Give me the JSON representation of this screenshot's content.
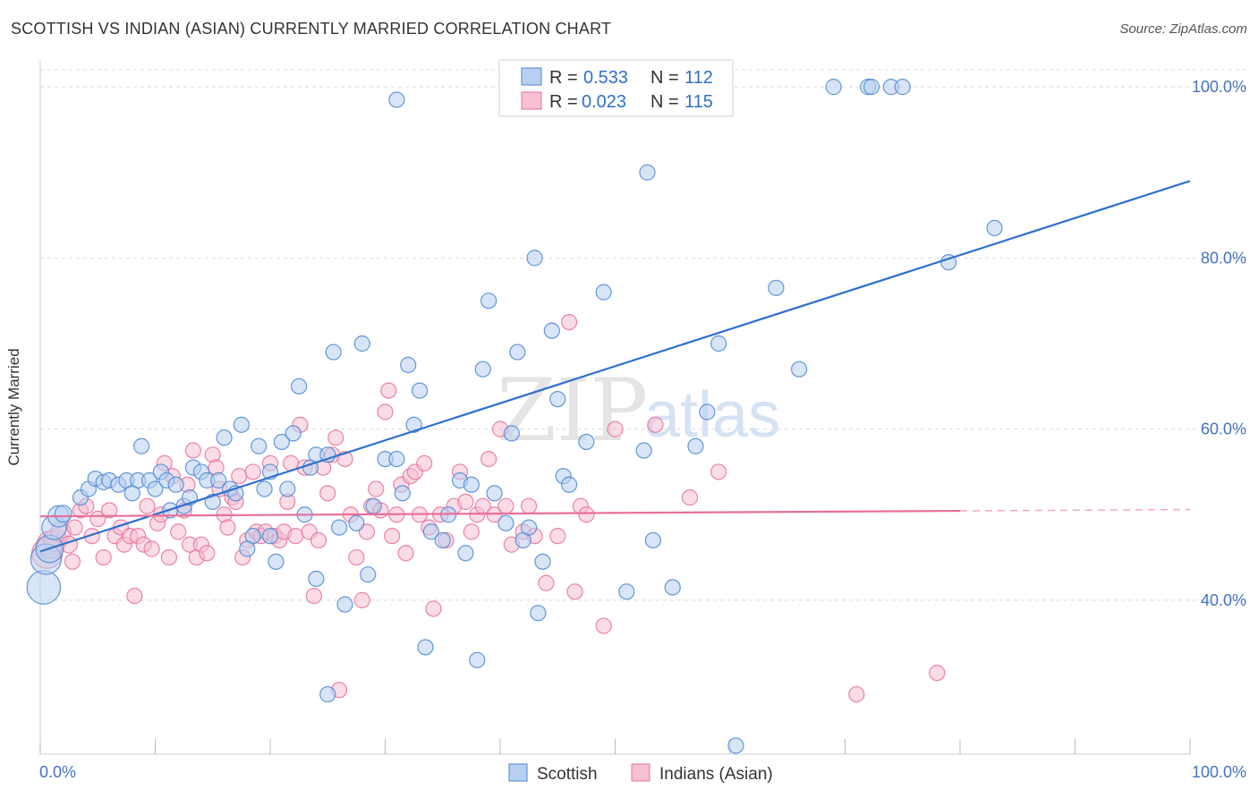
{
  "title": "SCOTTISH VS INDIAN (ASIAN) CURRENTLY MARRIED CORRELATION CHART",
  "source": "Source: ZipAtlas.com",
  "watermark": {
    "zip": "ZIP",
    "atlas": "atlas"
  },
  "colors": {
    "scottish": "#4a86d0",
    "scottish_fill": "#b8d0f0",
    "indian": "#e8709a",
    "indian_fill": "#f6c0d2",
    "value_text": "#2f6fd0",
    "grid": "#d9d9d9"
  },
  "legend_top": {
    "r_label": "R =",
    "n_label": "N =",
    "rows": [
      {
        "series": "Scottish",
        "r": "0.533",
        "n": "112"
      },
      {
        "series": "Indians (Asian)",
        "r": "0.023",
        "n": "115"
      }
    ]
  },
  "legend_bottom": [
    "Scottish",
    "Indians (Asian)"
  ],
  "chart_data": {
    "type": "scatter",
    "title": "SCOTTISH VS INDIAN (ASIAN) CURRENTLY MARRIED CORRELATION CHART",
    "xlabel": "",
    "ylabel": "Currently Married",
    "xlim": [
      0,
      100
    ],
    "ylim": [
      22,
      102
    ],
    "x_tick_labels": [
      "0.0%",
      "100.0%"
    ],
    "y_ticks": [
      40,
      60,
      80,
      100
    ],
    "y_tick_labels": [
      "40.0%",
      "60.0%",
      "80.0%",
      "100.0%"
    ],
    "grid": true,
    "legend_placement": "top-center",
    "series": [
      {
        "name": "Scottish",
        "r": 0.533,
        "n": 112,
        "trend": {
          "x": [
            0,
            100
          ],
          "y": [
            45.7,
            89.0
          ],
          "dashed_from": null
        },
        "points": [
          [
            0.3,
            41.5,
            2.2
          ],
          [
            0.5,
            44.8,
            2.0
          ],
          [
            0.8,
            46.0,
            1.8
          ],
          [
            1.2,
            48.5,
            1.6
          ],
          [
            1.6,
            49.8,
            1.4
          ],
          [
            2.0,
            50.1,
            1.1
          ],
          [
            3.5,
            52.0,
            1.0
          ],
          [
            4.2,
            53.0,
            1.0
          ],
          [
            4.8,
            54.2,
            1.0
          ],
          [
            5.5,
            53.8,
            1.0
          ],
          [
            6.0,
            54.0,
            1.0
          ],
          [
            6.8,
            53.5,
            1.0
          ],
          [
            7.5,
            54.0,
            1.0
          ],
          [
            8.0,
            52.5,
            1.0
          ],
          [
            8.5,
            54.0,
            1.0
          ],
          [
            8.8,
            58.0,
            1.0
          ],
          [
            9.5,
            54.0,
            1.0
          ],
          [
            10.0,
            53.0,
            1.0
          ],
          [
            10.5,
            55.0,
            1.0
          ],
          [
            11.0,
            54.0,
            1.0
          ],
          [
            11.3,
            50.5,
            1.0
          ],
          [
            11.8,
            53.5,
            1.0
          ],
          [
            12.5,
            51.0,
            1.0
          ],
          [
            13.0,
            52.0,
            1.0
          ],
          [
            13.3,
            55.5,
            1.0
          ],
          [
            14.0,
            55.0,
            1.0
          ],
          [
            14.5,
            54.0,
            1.0
          ],
          [
            15.0,
            51.5,
            1.0
          ],
          [
            15.5,
            54.0,
            1.0
          ],
          [
            16.0,
            59.0,
            1.0
          ],
          [
            16.5,
            53.0,
            1.0
          ],
          [
            17.0,
            52.5,
            1.0
          ],
          [
            17.5,
            60.5,
            1.0
          ],
          [
            18.5,
            47.5,
            1.0
          ],
          [
            19.0,
            58.0,
            1.0
          ],
          [
            19.5,
            53.0,
            1.0
          ],
          [
            20.0,
            55.0,
            1.0
          ],
          [
            20.5,
            44.5,
            1.0
          ],
          [
            21.0,
            58.5,
            1.0
          ],
          [
            21.5,
            53.0,
            1.0
          ],
          [
            22.0,
            59.5,
            1.0
          ],
          [
            22.5,
            65.0,
            1.0
          ],
          [
            23.0,
            50.0,
            1.0
          ],
          [
            23.5,
            55.5,
            1.0
          ],
          [
            24.0,
            57.0,
            1.0
          ],
          [
            25.0,
            57.0,
            1.0
          ],
          [
            25.5,
            69.0,
            1.0
          ],
          [
            26.0,
            48.5,
            1.0
          ],
          [
            26.5,
            39.5,
            1.0
          ],
          [
            27.5,
            49.0,
            1.0
          ],
          [
            28.0,
            70.0,
            1.0
          ],
          [
            28.5,
            43.0,
            1.0
          ],
          [
            29.0,
            51.0,
            1.0
          ],
          [
            30.0,
            56.5,
            1.0
          ],
          [
            31.0,
            56.5,
            1.0
          ],
          [
            31.5,
            52.5,
            1.0
          ],
          [
            32.0,
            67.5,
            1.0
          ],
          [
            32.5,
            60.5,
            1.0
          ],
          [
            33.0,
            64.5,
            1.0
          ],
          [
            33.5,
            34.5,
            1.0
          ],
          [
            34.0,
            48.0,
            1.0
          ],
          [
            35.0,
            47.0,
            1.0
          ],
          [
            35.5,
            50.0,
            1.0
          ],
          [
            36.5,
            54.0,
            1.0
          ],
          [
            37.0,
            45.5,
            1.0
          ],
          [
            37.5,
            53.5,
            1.0
          ],
          [
            38.0,
            33.0,
            1.0
          ],
          [
            38.5,
            67.0,
            1.0
          ],
          [
            39.0,
            75.0,
            1.0
          ],
          [
            39.5,
            52.5,
            1.0
          ],
          [
            40.5,
            49.0,
            1.0
          ],
          [
            41.0,
            59.5,
            1.0
          ],
          [
            41.5,
            69.0,
            1.0
          ],
          [
            42.0,
            47.0,
            1.0
          ],
          [
            42.5,
            48.5,
            1.0
          ],
          [
            43.0,
            80.0,
            1.0
          ],
          [
            43.3,
            38.5,
            1.0
          ],
          [
            43.7,
            44.5,
            1.0
          ],
          [
            44.5,
            71.5,
            1.0
          ],
          [
            45.0,
            63.5,
            1.0
          ],
          [
            45.5,
            54.5,
            1.0
          ],
          [
            46.0,
            53.5,
            1.0
          ],
          [
            47.5,
            58.5,
            1.0
          ],
          [
            49.0,
            76.0,
            1.0
          ],
          [
            51.0,
            41.0,
            1.0
          ],
          [
            52.5,
            57.5,
            1.0
          ],
          [
            52.8,
            90.0,
            1.0
          ],
          [
            53.3,
            47.0,
            1.0
          ],
          [
            55.0,
            41.5,
            1.0
          ],
          [
            57.0,
            58.0,
            1.0
          ],
          [
            58.0,
            62.0,
            1.0
          ],
          [
            59.0,
            70.0,
            1.0
          ],
          [
            60.5,
            23.0,
            1.0
          ],
          [
            64.0,
            76.5,
            1.0
          ],
          [
            66.0,
            67.0,
            1.0
          ],
          [
            69.0,
            100.0,
            1.0
          ],
          [
            72.0,
            100.0,
            1.0
          ],
          [
            72.3,
            100.0,
            1.0
          ],
          [
            74.0,
            100.0,
            1.0
          ],
          [
            75.0,
            100.0,
            1.0
          ],
          [
            79.0,
            79.5,
            1.0
          ],
          [
            83.0,
            83.5,
            1.0
          ],
          [
            31.0,
            98.5,
            1.0
          ],
          [
            25.0,
            29.0,
            1.0
          ],
          [
            24.0,
            42.5,
            1.0
          ],
          [
            18.0,
            46.0,
            1.0
          ],
          [
            20.0,
            47.5,
            1.0
          ]
        ]
      },
      {
        "name": "Indians (Asian)",
        "r": 0.023,
        "n": 115,
        "trend": {
          "x": [
            0,
            100
          ],
          "y": [
            49.8,
            50.6
          ],
          "dashed_from": 80
        },
        "points": [
          [
            0.6,
            45.5,
            2.0
          ],
          [
            0.9,
            46.5,
            1.8
          ],
          [
            1.3,
            47.0,
            1.5
          ],
          [
            1.8,
            48.0,
            1.3
          ],
          [
            2.5,
            46.5,
            1.1
          ],
          [
            2.8,
            44.5,
            1.0
          ],
          [
            3.0,
            48.5,
            1.0
          ],
          [
            3.5,
            50.5,
            1.0
          ],
          [
            4.0,
            51.0,
            1.0
          ],
          [
            4.5,
            47.5,
            1.0
          ],
          [
            5.0,
            49.5,
            1.0
          ],
          [
            5.5,
            45.0,
            1.0
          ],
          [
            6.0,
            50.5,
            1.0
          ],
          [
            6.5,
            47.5,
            1.0
          ],
          [
            7.0,
            48.5,
            1.0
          ],
          [
            7.3,
            46.5,
            1.0
          ],
          [
            7.8,
            47.5,
            1.0
          ],
          [
            8.2,
            40.5,
            1.0
          ],
          [
            8.5,
            47.5,
            1.0
          ],
          [
            9.0,
            46.5,
            1.0
          ],
          [
            9.3,
            51.0,
            1.0
          ],
          [
            9.7,
            46.0,
            1.0
          ],
          [
            10.2,
            49.0,
            1.0
          ],
          [
            10.5,
            50.0,
            1.0
          ],
          [
            10.8,
            56.0,
            1.0
          ],
          [
            11.2,
            45.0,
            1.0
          ],
          [
            11.5,
            54.5,
            1.0
          ],
          [
            12.0,
            48.0,
            1.0
          ],
          [
            12.5,
            50.5,
            1.0
          ],
          [
            12.8,
            53.5,
            1.0
          ],
          [
            13.0,
            46.5,
            1.0
          ],
          [
            13.3,
            57.5,
            1.0
          ],
          [
            13.6,
            45.0,
            1.0
          ],
          [
            14.0,
            46.5,
            1.0
          ],
          [
            14.5,
            45.5,
            1.0
          ],
          [
            15.0,
            57.0,
            1.0
          ],
          [
            15.3,
            55.5,
            1.0
          ],
          [
            15.6,
            53.0,
            1.0
          ],
          [
            16.0,
            50.0,
            1.0
          ],
          [
            16.3,
            48.5,
            1.0
          ],
          [
            16.7,
            52.0,
            1.0
          ],
          [
            17.0,
            51.5,
            1.0
          ],
          [
            17.3,
            54.5,
            1.0
          ],
          [
            17.6,
            45.0,
            1.0
          ],
          [
            18.0,
            47.0,
            1.0
          ],
          [
            18.5,
            55.0,
            1.0
          ],
          [
            18.8,
            48.0,
            1.0
          ],
          [
            19.2,
            47.5,
            1.0
          ],
          [
            19.6,
            48.0,
            1.0
          ],
          [
            20.0,
            56.0,
            1.0
          ],
          [
            20.4,
            47.5,
            1.0
          ],
          [
            20.8,
            47.0,
            1.0
          ],
          [
            21.2,
            48.0,
            1.0
          ],
          [
            21.5,
            51.5,
            1.0
          ],
          [
            21.8,
            56.0,
            1.0
          ],
          [
            22.2,
            47.5,
            1.0
          ],
          [
            22.6,
            60.5,
            1.0
          ],
          [
            23.0,
            55.5,
            1.0
          ],
          [
            23.4,
            48.0,
            1.0
          ],
          [
            23.8,
            40.5,
            1.0
          ],
          [
            24.2,
            47.0,
            1.0
          ],
          [
            24.6,
            55.5,
            1.0
          ],
          [
            25.0,
            52.5,
            1.0
          ],
          [
            25.4,
            57.0,
            1.0
          ],
          [
            25.7,
            59.0,
            1.0
          ],
          [
            26.0,
            29.5,
            1.0
          ],
          [
            26.5,
            56.5,
            1.0
          ],
          [
            27.0,
            50.0,
            1.0
          ],
          [
            27.5,
            45.0,
            1.0
          ],
          [
            28.0,
            40.0,
            1.0
          ],
          [
            28.4,
            48.0,
            1.0
          ],
          [
            28.8,
            51.0,
            1.0
          ],
          [
            29.2,
            53.0,
            1.0
          ],
          [
            29.6,
            50.5,
            1.0
          ],
          [
            30.0,
            62.0,
            1.0
          ],
          [
            30.3,
            64.5,
            1.0
          ],
          [
            30.6,
            47.5,
            1.0
          ],
          [
            31.0,
            50.0,
            1.0
          ],
          [
            31.4,
            53.5,
            1.0
          ],
          [
            31.8,
            45.5,
            1.0
          ],
          [
            32.2,
            54.5,
            1.0
          ],
          [
            32.6,
            55.0,
            1.0
          ],
          [
            33.0,
            50.0,
            1.0
          ],
          [
            33.4,
            56.0,
            1.0
          ],
          [
            33.8,
            48.5,
            1.0
          ],
          [
            34.2,
            39.0,
            1.0
          ],
          [
            34.8,
            50.0,
            1.0
          ],
          [
            35.3,
            47.0,
            1.0
          ],
          [
            36.0,
            51.0,
            1.0
          ],
          [
            36.5,
            55.0,
            1.0
          ],
          [
            37.0,
            51.5,
            1.0
          ],
          [
            37.5,
            48.0,
            1.0
          ],
          [
            38.0,
            50.0,
            1.0
          ],
          [
            38.5,
            51.0,
            1.0
          ],
          [
            39.0,
            56.5,
            1.0
          ],
          [
            39.5,
            50.0,
            1.0
          ],
          [
            40.0,
            60.0,
            1.0
          ],
          [
            40.5,
            51.0,
            1.0
          ],
          [
            41.0,
            46.5,
            1.0
          ],
          [
            42.0,
            48.0,
            1.0
          ],
          [
            42.5,
            51.0,
            1.0
          ],
          [
            43.0,
            47.5,
            1.0
          ],
          [
            44.0,
            42.0,
            1.0
          ],
          [
            45.0,
            47.5,
            1.0
          ],
          [
            46.0,
            72.5,
            1.0
          ],
          [
            46.5,
            41.0,
            1.0
          ],
          [
            47.0,
            51.0,
            1.0
          ],
          [
            47.5,
            50.0,
            1.0
          ],
          [
            49.0,
            37.0,
            1.0
          ],
          [
            53.5,
            60.5,
            1.0
          ],
          [
            56.5,
            52.0,
            1.0
          ],
          [
            59.0,
            55.0,
            1.0
          ],
          [
            71.0,
            29.0,
            1.0
          ],
          [
            78.0,
            31.5,
            1.0
          ],
          [
            50.0,
            60.0,
            1.0
          ]
        ]
      }
    ]
  }
}
